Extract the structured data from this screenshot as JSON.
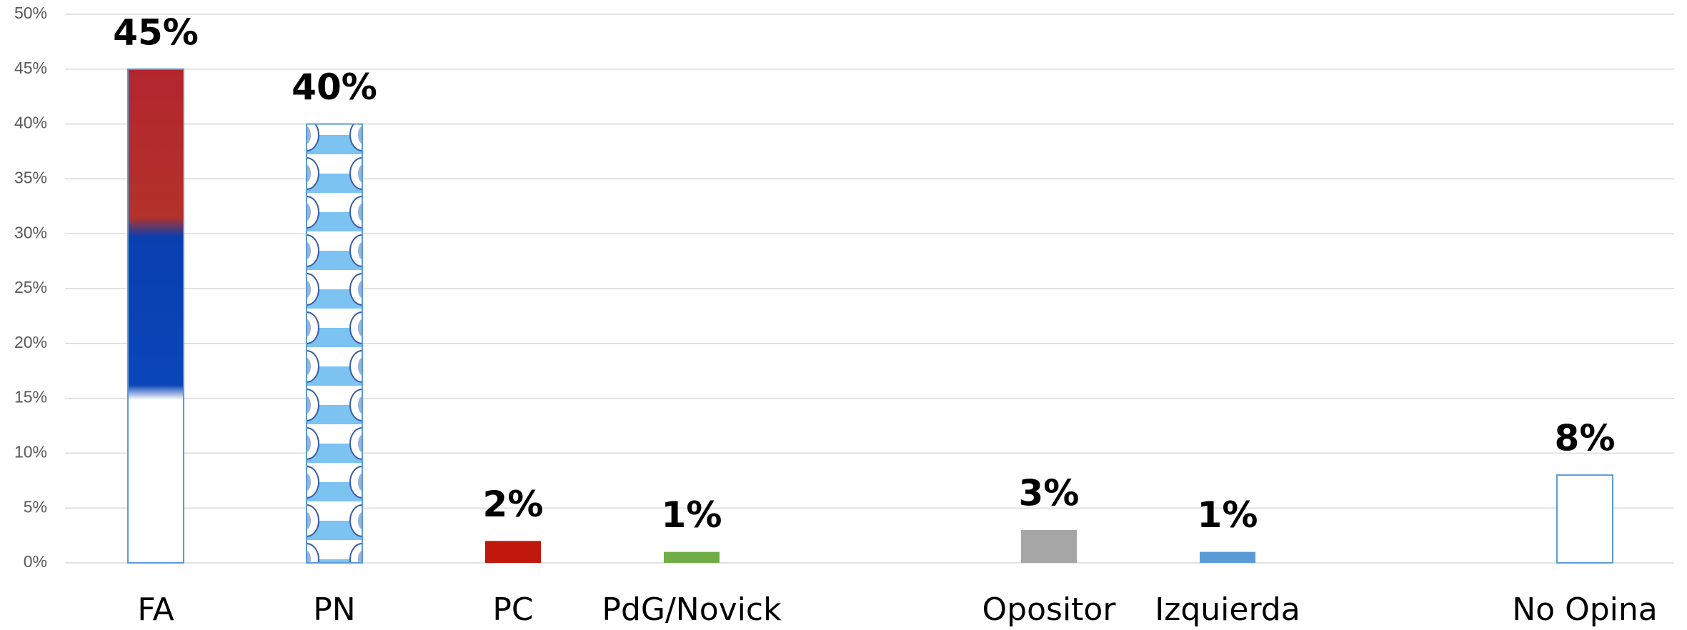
{
  "chart_data": {
    "type": "bar",
    "categories": [
      "FA",
      "PN",
      "PC",
      "PdG/Novick",
      null,
      "Opositor",
      "Izquierda",
      null,
      "No Opina"
    ],
    "values": [
      45,
      40,
      2,
      1,
      null,
      3,
      1,
      null,
      8
    ],
    "value_labels": [
      "45%",
      "40%",
      "2%",
      "1%",
      null,
      "3%",
      "1%",
      null,
      "8%"
    ],
    "colors": [
      "url(#fa-flag)",
      "url(#pn-flag)",
      "#c0180c",
      "#70ad47",
      null,
      "#a6a6a6",
      "#5b9bd5",
      null,
      "#ffffff"
    ],
    "ylim": [
      0,
      50
    ],
    "yticks": [
      {
        "value": 0,
        "label": "0%"
      },
      {
        "value": 5,
        "label": "5%"
      },
      {
        "value": 10,
        "label": "10%"
      },
      {
        "value": 15,
        "label": "15%"
      },
      {
        "value": 20,
        "label": "20%"
      },
      {
        "value": 25,
        "label": "25%"
      },
      {
        "value": 30,
        "label": "30%"
      },
      {
        "value": 35,
        "label": "35%"
      },
      {
        "value": 40,
        "label": "40%"
      },
      {
        "value": 45,
        "label": "45%"
      },
      {
        "value": 50,
        "label": "50%"
      }
    ],
    "grid": true
  }
}
